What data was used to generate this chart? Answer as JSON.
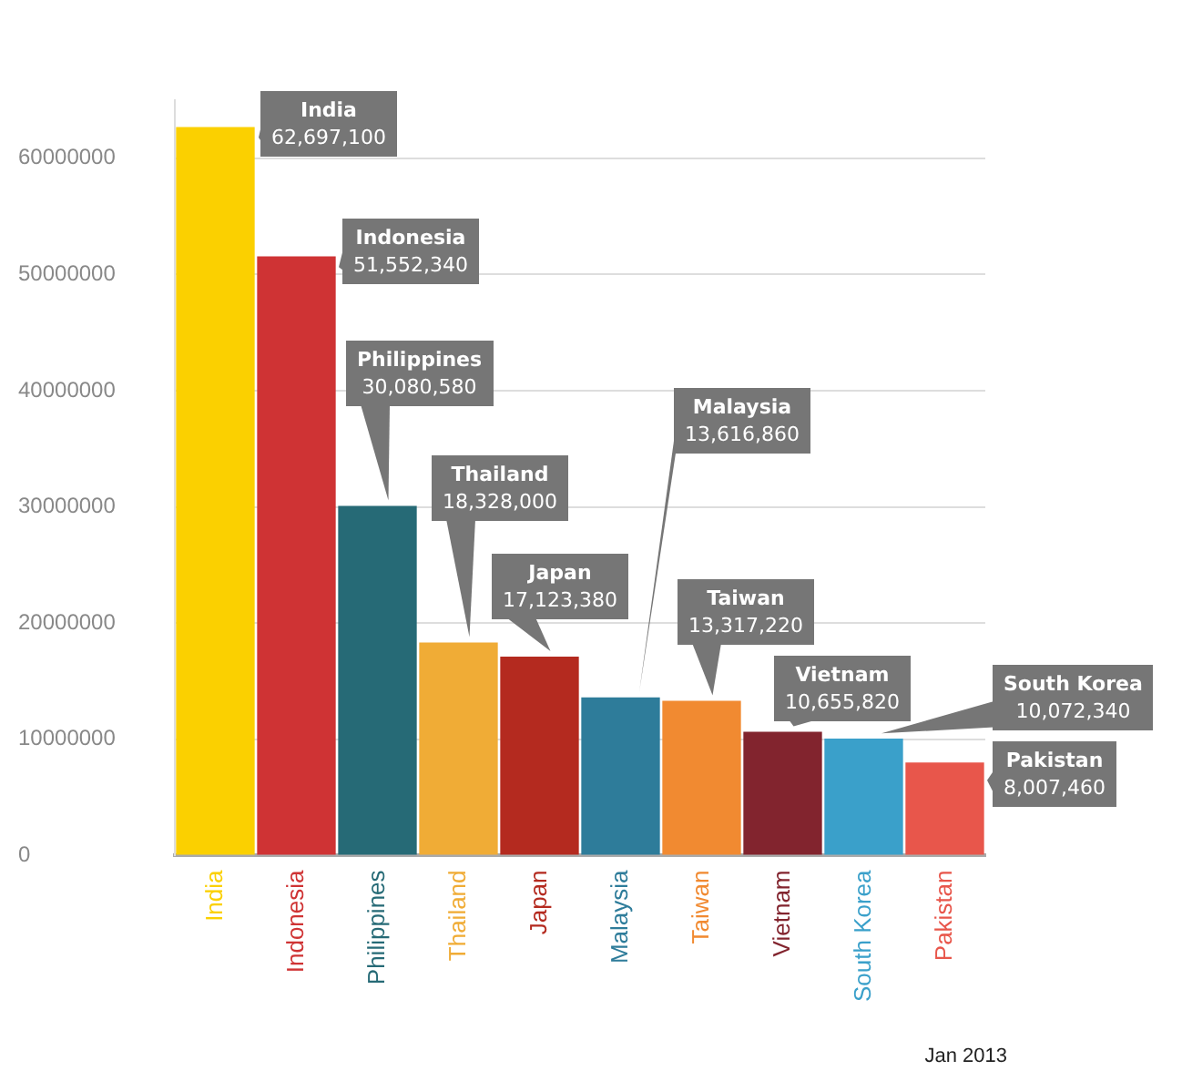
{
  "chart_data": {
    "type": "bar",
    "categories": [
      "India",
      "Indonesia",
      "Philippines",
      "Thailand",
      "Japan",
      "Malaysia",
      "Taiwan",
      "Vietnam",
      "South Korea",
      "Pakistan"
    ],
    "values": [
      62697100,
      51552340,
      30080580,
      18328000,
      17123380,
      13616860,
      13317220,
      10655820,
      10072340,
      8007460
    ],
    "colors": [
      "#fbd000",
      "#cf3334",
      "#266a76",
      "#f0ac36",
      "#b42a1f",
      "#2e7c9a",
      "#f18a31",
      "#82242e",
      "#3aa0ca",
      "#e8564b"
    ],
    "value_labels": [
      "62,697,100",
      "51,552,340",
      "30,080,580",
      "18,328,000",
      "17,123,380",
      "13,616,860",
      "13,317,220",
      "10,655,820",
      "10,072,340",
      "8,007,460"
    ],
    "ylim": [
      0,
      65000000
    ],
    "yticks": [
      0,
      10000000,
      20000000,
      30000000,
      40000000,
      50000000,
      60000000
    ],
    "grid": "y",
    "legend": false,
    "annotations": [
      "Jan 2013"
    ]
  }
}
